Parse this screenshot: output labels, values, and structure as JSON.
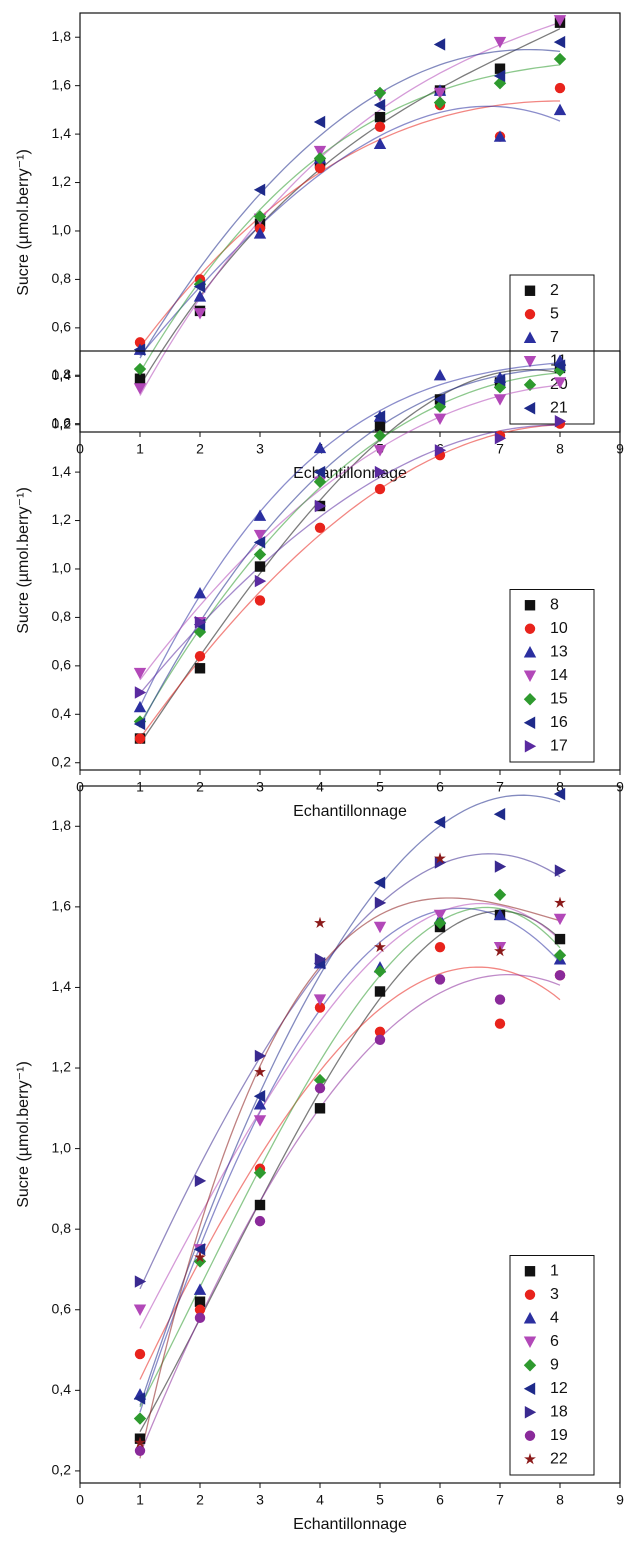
{
  "chart_data": [
    {
      "type": "scatter",
      "x_label": "Echantillonnage",
      "y_label": "Sucre (µmol.berry⁻¹)",
      "x": [
        1,
        2,
        3,
        4,
        5,
        6,
        7,
        8
      ],
      "xlim": [
        0,
        9
      ],
      "xticks": [
        0,
        1,
        2,
        3,
        4,
        5,
        6,
        7,
        8,
        9
      ],
      "ylim": [
        0.17,
        1.9
      ],
      "yticks": [
        {
          "value": 0.2,
          "label": "0,2"
        },
        {
          "value": 0.4,
          "label": "0,4"
        },
        {
          "value": 0.6,
          "label": "0,6"
        },
        {
          "value": 0.8,
          "label": "0,8"
        },
        {
          "value": 1.0,
          "label": "1,0"
        },
        {
          "value": 1.2,
          "label": "1,2"
        },
        {
          "value": 1.4,
          "label": "1,4"
        },
        {
          "value": 1.6,
          "label": "1,6"
        },
        {
          "value": 1.8,
          "label": "1,8"
        }
      ],
      "legend": "lower right",
      "trendline": true,
      "series": [
        {
          "name": "2",
          "color": "#111111",
          "marker": "square",
          "values": [
            0.39,
            0.67,
            1.03,
            1.28,
            1.47,
            1.58,
            1.67,
            1.86
          ]
        },
        {
          "name": "5",
          "color": "#e8231c",
          "marker": "circle",
          "values": [
            0.54,
            0.8,
            1.01,
            1.26,
            1.43,
            1.52,
            1.39,
            1.59
          ]
        },
        {
          "name": "7",
          "color": "#2b2fa0",
          "marker": "up",
          "values": [
            0.51,
            0.73,
            0.99,
            1.3,
            1.36,
            1.58,
            1.39,
            1.5
          ]
        },
        {
          "name": "11",
          "color": "#b248b8",
          "marker": "down",
          "values": [
            0.35,
            0.66,
            1.05,
            1.33,
            1.56,
            1.57,
            1.78,
            1.87
          ]
        },
        {
          "name": "20",
          "color": "#2e9a2e",
          "marker": "diamond",
          "values": [
            0.43,
            0.78,
            1.06,
            1.3,
            1.57,
            1.53,
            1.61,
            1.71
          ]
        },
        {
          "name": "21",
          "color": "#1e2a8a",
          "marker": "left",
          "values": [
            0.51,
            0.77,
            1.17,
            1.45,
            1.52,
            1.77,
            1.64,
            1.78
          ]
        }
      ]
    },
    {
      "type": "scatter",
      "x_label": "Echantillonnage",
      "y_label": "Sucre (µmol.berry⁻¹)",
      "x": [
        1,
        2,
        3,
        4,
        5,
        6,
        7,
        8
      ],
      "xlim": [
        0,
        9
      ],
      "xticks": [
        0,
        1,
        2,
        3,
        4,
        5,
        6,
        7,
        8,
        9
      ],
      "ylim": [
        0.17,
        1.9
      ],
      "yticks": [
        {
          "value": 0.2,
          "label": "0,2"
        },
        {
          "value": 0.4,
          "label": "0,4"
        },
        {
          "value": 0.6,
          "label": "0,6"
        },
        {
          "value": 0.8,
          "label": "0,8"
        },
        {
          "value": 1.0,
          "label": "1,0"
        },
        {
          "value": 1.2,
          "label": "1,2"
        },
        {
          "value": 1.4,
          "label": "1,4"
        },
        {
          "value": 1.6,
          "label": "1,6"
        },
        {
          "value": 1.8,
          "label": "1,8"
        }
      ],
      "legend": "lower right",
      "trendline": true,
      "series": [
        {
          "name": "8",
          "color": "#111111",
          "marker": "square",
          "values": [
            0.3,
            0.59,
            1.01,
            1.26,
            1.59,
            1.7,
            1.77,
            1.83
          ]
        },
        {
          "name": "10",
          "color": "#e8231c",
          "marker": "circle",
          "values": [
            0.3,
            0.64,
            0.87,
            1.17,
            1.33,
            1.47,
            1.55,
            1.6
          ]
        },
        {
          "name": "13",
          "color": "#2b2fa0",
          "marker": "up",
          "values": [
            0.43,
            0.9,
            1.22,
            1.5,
            1.63,
            1.8,
            1.79,
            1.86
          ]
        },
        {
          "name": "14",
          "color": "#b248b8",
          "marker": "down",
          "values": [
            0.57,
            0.78,
            1.14,
            1.36,
            1.49,
            1.62,
            1.7,
            1.77
          ]
        },
        {
          "name": "15",
          "color": "#2e9a2e",
          "marker": "diamond",
          "values": [
            0.37,
            0.74,
            1.06,
            1.36,
            1.55,
            1.67,
            1.75,
            1.82
          ]
        },
        {
          "name": "16",
          "color": "#1e2a8a",
          "marker": "left",
          "values": [
            0.36,
            0.77,
            1.11,
            1.4,
            1.63,
            1.7,
            1.78,
            1.84
          ]
        },
        {
          "name": "17",
          "color": "#5a2aa0",
          "marker": "right",
          "values": [
            0.49,
            0.78,
            0.95,
            1.26,
            1.4,
            1.49,
            1.54,
            1.61
          ]
        }
      ]
    },
    {
      "type": "scatter",
      "x_label": "Echantillonnage",
      "y_label": "Sucre (µmol.berry⁻¹)",
      "x": [
        1,
        2,
        3,
        4,
        5,
        6,
        7,
        8
      ],
      "xlim": [
        0,
        9
      ],
      "xticks": [
        0,
        1,
        2,
        3,
        4,
        5,
        6,
        7,
        8,
        9
      ],
      "ylim": [
        0.17,
        1.9
      ],
      "yticks": [
        {
          "value": 0.2,
          "label": "0,2"
        },
        {
          "value": 0.4,
          "label": "0,4"
        },
        {
          "value": 0.6,
          "label": "0,6"
        },
        {
          "value": 0.8,
          "label": "0,8"
        },
        {
          "value": 1.0,
          "label": "1,0"
        },
        {
          "value": 1.2,
          "label": "1,2"
        },
        {
          "value": 1.4,
          "label": "1,4"
        },
        {
          "value": 1.6,
          "label": "1,6"
        },
        {
          "value": 1.8,
          "label": "1,8"
        }
      ],
      "legend": "lower right",
      "trendline": true,
      "series": [
        {
          "name": "1",
          "color": "#111111",
          "marker": "square",
          "values": [
            0.28,
            0.62,
            0.86,
            1.1,
            1.39,
            1.55,
            1.58,
            1.52
          ]
        },
        {
          "name": "3",
          "color": "#e8231c",
          "marker": "circle",
          "values": [
            0.49,
            0.6,
            0.95,
            1.35,
            1.29,
            1.5,
            1.31,
            1.43
          ]
        },
        {
          "name": "4",
          "color": "#2b2fa0",
          "marker": "up",
          "values": [
            0.39,
            0.65,
            1.11,
            1.46,
            1.45,
            1.57,
            1.58,
            1.47
          ]
        },
        {
          "name": "6",
          "color": "#b248b8",
          "marker": "down",
          "values": [
            0.6,
            0.75,
            1.07,
            1.37,
            1.55,
            1.58,
            1.5,
            1.57
          ]
        },
        {
          "name": "9",
          "color": "#2e9a2e",
          "marker": "diamond",
          "values": [
            0.33,
            0.72,
            0.94,
            1.17,
            1.44,
            1.56,
            1.63,
            1.48
          ]
        },
        {
          "name": "12",
          "color": "#1e2a8a",
          "marker": "left",
          "values": [
            0.38,
            0.75,
            1.13,
            1.46,
            1.66,
            1.81,
            1.83,
            1.88
          ]
        },
        {
          "name": "18",
          "color": "#3a2a90",
          "marker": "right",
          "values": [
            0.67,
            0.92,
            1.23,
            1.47,
            1.61,
            1.71,
            1.7,
            1.69
          ]
        },
        {
          "name": "19",
          "color": "#8a2a9a",
          "marker": "circle",
          "values": [
            0.25,
            0.58,
            0.82,
            1.15,
            1.27,
            1.42,
            1.37,
            1.43
          ]
        },
        {
          "name": "22",
          "color": "#8b1a1a",
          "marker": "star",
          "values": [
            0.27,
            0.73,
            1.19,
            1.56,
            1.5,
            1.72,
            1.49,
            1.61
          ]
        }
      ]
    }
  ]
}
